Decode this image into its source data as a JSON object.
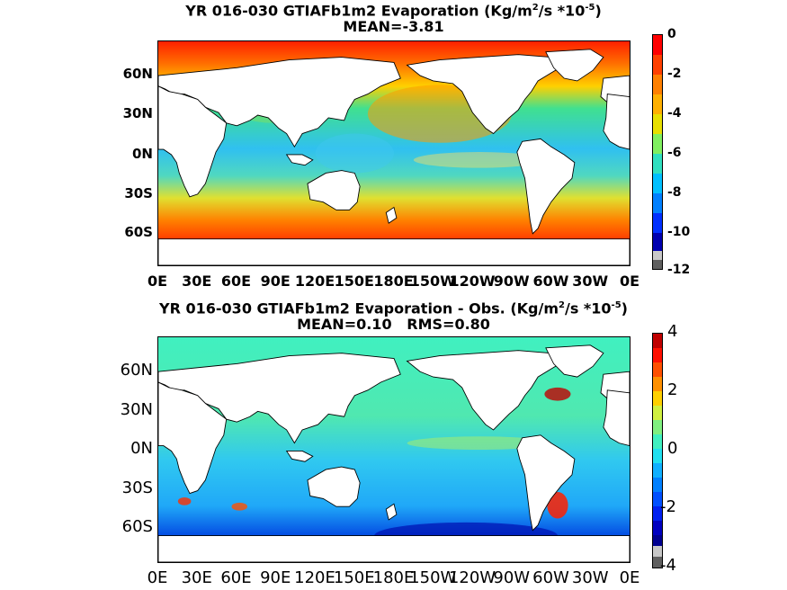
{
  "panel_top": {
    "title_prefix": "YR 016-030 GTIAFb1m2  Evaporation (Kg/m",
    "title_sup1": "2",
    "title_mid": "/s *10",
    "title_sup2": "-5",
    "title_suffix": ")",
    "stats": "MEAN=-3.81",
    "lat_labels": [
      "60N",
      "30N",
      "0N",
      "30S",
      "60S"
    ],
    "lon_labels": [
      "0E",
      "30E",
      "60E",
      "90E",
      "120E",
      "150E",
      "180E",
      "150W",
      "120W",
      "90W",
      "60W",
      "30W",
      "0E"
    ],
    "colorbar_labels": [
      "0",
      "-2",
      "-4",
      "-6",
      "-8",
      "-10",
      "-12"
    ],
    "colorbar_range": [
      -12,
      0
    ]
  },
  "panel_bottom": {
    "title_prefix": "YR 016-030 GTIAFb1m2 Evaporation - Obs. (Kg/m",
    "title_sup1": "2",
    "title_mid": "/s *10",
    "title_sup2": "-5",
    "title_suffix": ")",
    "stats": "MEAN=0.10   RMS=0.80",
    "lat_labels": [
      "60N",
      "30N",
      "0N",
      "30S",
      "60S"
    ],
    "lon_labels": [
      "0E",
      "30E",
      "60E",
      "90E",
      "120E",
      "150E",
      "180E",
      "150W",
      "120W",
      "90W",
      "60W",
      "30W",
      "0E"
    ],
    "colorbar_labels": [
      "4",
      "2",
      "0",
      "-2",
      "-4"
    ],
    "colorbar_range": [
      -4,
      4
    ]
  },
  "colors": {
    "land": "#ffffff",
    "coastline": "#000000",
    "colormap": "jet"
  }
}
